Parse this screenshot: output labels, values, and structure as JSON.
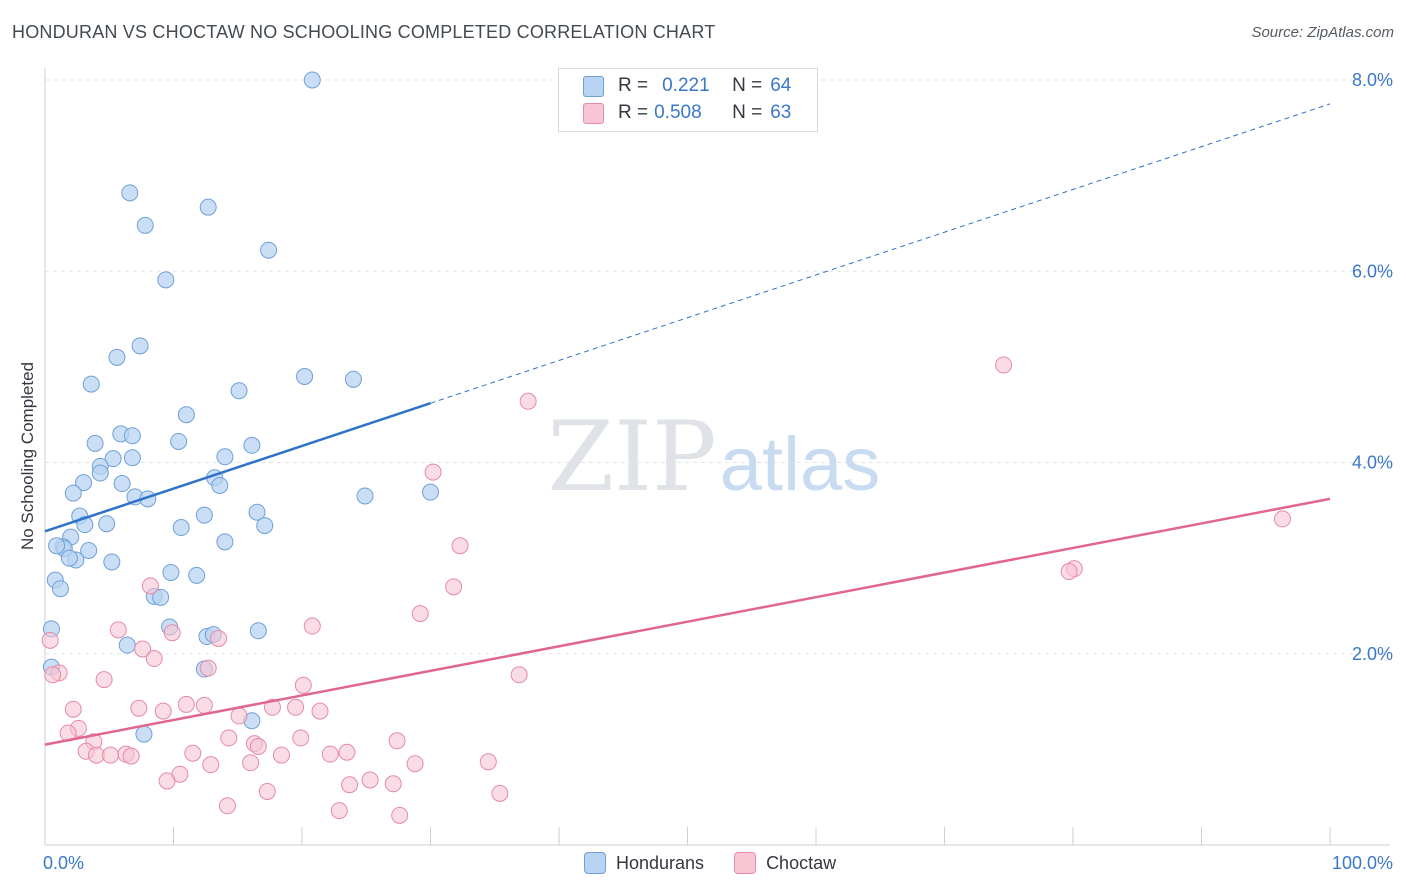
{
  "title": "HONDURAN VS CHOCTAW NO SCHOOLING COMPLETED CORRELATION CHART",
  "source": "Source: ZipAtlas.com",
  "watermark": {
    "zip": "ZIP",
    "atlas": "atlas"
  },
  "colors": {
    "hondurans_fill": "#b8d4f2",
    "hondurans_stroke": "#6fa0d8",
    "hondurans_line": "#2f72c9",
    "choctaw_fill": "#f7c5d4",
    "choctaw_stroke": "#e68aa8",
    "choctaw_line": "#e0668f",
    "axis_text": "#3a78c9"
  },
  "stat_legend": {
    "rows": [
      {
        "r_label": "R =",
        "r_value": "0.221",
        "n_label": "N =",
        "n_value": "64"
      },
      {
        "r_label": "R =",
        "r_value": "0.508",
        "n_label": "N =",
        "n_value": "63"
      }
    ]
  },
  "chart_data": {
    "type": "scatter",
    "title": "HONDURAN VS CHOCTAW NO SCHOOLING COMPLETED CORRELATION CHART",
    "xlabel": "",
    "ylabel": "No Schooling Completed",
    "xlim": [
      0,
      100
    ],
    "ylim": [
      0,
      8.0
    ],
    "x_tick_labels": [
      "0.0%",
      "100.0%"
    ],
    "y_ticks": [
      {
        "value": 2.0,
        "label": "2.0%"
      },
      {
        "value": 4.0,
        "label": "4.0%"
      },
      {
        "value": 6.0,
        "label": "6.0%"
      },
      {
        "value": 8.0,
        "label": "8.0%"
      }
    ],
    "series": [
      {
        "name": "Hondurans",
        "r": 0.221,
        "n": 64,
        "trend": {
          "x0": 0,
          "y0": 3.28,
          "x1": 30,
          "y1": 4.62,
          "dash_x1": 100,
          "dash_y1": 7.75
        },
        "points": [
          [
            20.8,
            8.0
          ],
          [
            6.6,
            6.82
          ],
          [
            12.7,
            6.67
          ],
          [
            7.8,
            6.48
          ],
          [
            17.4,
            6.22
          ],
          [
            9.4,
            5.91
          ],
          [
            7.4,
            5.22
          ],
          [
            5.6,
            5.1
          ],
          [
            20.2,
            4.9
          ],
          [
            24.0,
            4.87
          ],
          [
            3.6,
            4.82
          ],
          [
            15.1,
            4.75
          ],
          [
            11.0,
            4.5
          ],
          [
            5.9,
            4.3
          ],
          [
            6.8,
            4.28
          ],
          [
            3.9,
            4.2
          ],
          [
            10.4,
            4.22
          ],
          [
            16.1,
            4.18
          ],
          [
            14.0,
            4.06
          ],
          [
            6.8,
            4.05
          ],
          [
            5.3,
            4.04
          ],
          [
            4.3,
            3.96
          ],
          [
            4.3,
            3.89
          ],
          [
            13.2,
            3.84
          ],
          [
            3.0,
            3.79
          ],
          [
            6.0,
            3.78
          ],
          [
            13.6,
            3.76
          ],
          [
            2.2,
            3.68
          ],
          [
            7.0,
            3.64
          ],
          [
            8.0,
            3.62
          ],
          [
            24.9,
            3.65
          ],
          [
            30.0,
            3.69
          ],
          [
            12.4,
            3.45
          ],
          [
            16.5,
            3.48
          ],
          [
            2.7,
            3.44
          ],
          [
            3.1,
            3.35
          ],
          [
            4.8,
            3.36
          ],
          [
            10.6,
            3.32
          ],
          [
            17.1,
            3.34
          ],
          [
            2.0,
            3.22
          ],
          [
            1.4,
            3.12
          ],
          [
            1.5,
            3.1
          ],
          [
            3.4,
            3.08
          ],
          [
            14.0,
            3.17
          ],
          [
            0.9,
            3.13
          ],
          [
            2.4,
            2.98
          ],
          [
            5.2,
            2.96
          ],
          [
            1.9,
            3.0
          ],
          [
            9.8,
            2.85
          ],
          [
            11.8,
            2.82
          ],
          [
            0.8,
            2.77
          ],
          [
            1.2,
            2.68
          ],
          [
            8.5,
            2.6
          ],
          [
            9.0,
            2.59
          ],
          [
            0.5,
            2.26
          ],
          [
            9.7,
            2.28
          ],
          [
            12.6,
            2.18
          ],
          [
            13.1,
            2.2
          ],
          [
            16.6,
            2.24
          ],
          [
            6.4,
            2.09
          ],
          [
            0.5,
            1.86
          ],
          [
            12.4,
            1.84
          ],
          [
            16.1,
            1.3
          ],
          [
            7.7,
            1.16
          ]
        ]
      },
      {
        "name": "Choctaw",
        "r": 0.508,
        "n": 63,
        "trend": {
          "x0": 0,
          "y0": 1.05,
          "x1": 100,
          "y1": 3.62
        },
        "points": [
          [
            74.6,
            5.02
          ],
          [
            37.6,
            4.64
          ],
          [
            30.2,
            3.9
          ],
          [
            96.3,
            3.41
          ],
          [
            32.3,
            3.13
          ],
          [
            80.1,
            2.89
          ],
          [
            79.7,
            2.86
          ],
          [
            8.2,
            2.71
          ],
          [
            31.8,
            2.7
          ],
          [
            29.2,
            2.42
          ],
          [
            20.8,
            2.29
          ],
          [
            5.7,
            2.25
          ],
          [
            9.9,
            2.22
          ],
          [
            13.5,
            2.16
          ],
          [
            0.4,
            2.14
          ],
          [
            7.6,
            2.05
          ],
          [
            8.5,
            1.95
          ],
          [
            12.7,
            1.85
          ],
          [
            1.1,
            1.8
          ],
          [
            0.6,
            1.78
          ],
          [
            36.9,
            1.78
          ],
          [
            4.6,
            1.73
          ],
          [
            20.1,
            1.67
          ],
          [
            11.0,
            1.47
          ],
          [
            12.4,
            1.46
          ],
          [
            17.7,
            1.44
          ],
          [
            19.5,
            1.44
          ],
          [
            2.2,
            1.42
          ],
          [
            7.3,
            1.43
          ],
          [
            9.2,
            1.4
          ],
          [
            21.4,
            1.4
          ],
          [
            15.1,
            1.35
          ],
          [
            2.6,
            1.22
          ],
          [
            1.8,
            1.17
          ],
          [
            14.3,
            1.12
          ],
          [
            19.9,
            1.12
          ],
          [
            3.8,
            1.08
          ],
          [
            27.4,
            1.09
          ],
          [
            16.3,
            1.06
          ],
          [
            16.6,
            1.03
          ],
          [
            11.5,
            0.96
          ],
          [
            23.5,
            0.97
          ],
          [
            3.2,
            0.98
          ],
          [
            4.0,
            0.94
          ],
          [
            5.1,
            0.94
          ],
          [
            6.3,
            0.95
          ],
          [
            6.7,
            0.93
          ],
          [
            18.4,
            0.94
          ],
          [
            22.2,
            0.95
          ],
          [
            16.0,
            0.86
          ],
          [
            12.9,
            0.84
          ],
          [
            28.8,
            0.85
          ],
          [
            34.5,
            0.87
          ],
          [
            10.5,
            0.74
          ],
          [
            9.5,
            0.67
          ],
          [
            25.3,
            0.68
          ],
          [
            27.1,
            0.64
          ],
          [
            23.7,
            0.63
          ],
          [
            17.3,
            0.56
          ],
          [
            35.4,
            0.54
          ],
          [
            14.2,
            0.41
          ],
          [
            22.9,
            0.36
          ],
          [
            27.6,
            0.31
          ]
        ]
      }
    ]
  },
  "bottom_legend": [
    {
      "label": "Hondurans"
    },
    {
      "label": "Choctaw"
    }
  ]
}
